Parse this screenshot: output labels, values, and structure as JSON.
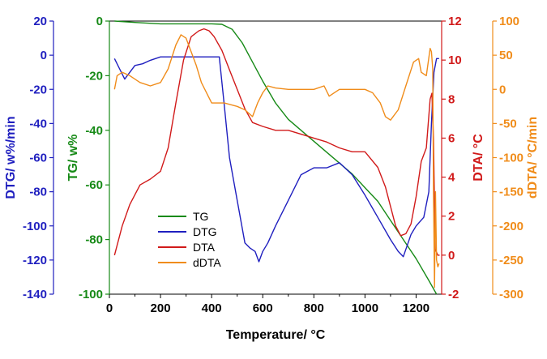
{
  "chart_data": {
    "type": "line",
    "xlabel": "Temperature/ °C",
    "xlim": [
      0,
      1300
    ],
    "xticks": [
      0,
      200,
      400,
      600,
      800,
      1000,
      1200
    ],
    "axes": {
      "DTG": {
        "label": "DTG/ w%/min",
        "color": "#1f1fbf",
        "lim": [
          -140,
          20
        ],
        "ticks": [
          -140,
          -120,
          -100,
          -80,
          -60,
          -40,
          -20,
          0,
          20
        ]
      },
      "TG": {
        "label": "TG/ w%",
        "color": "#178a17",
        "lim": [
          -100,
          0
        ],
        "ticks": [
          -100,
          -80,
          -60,
          -40,
          -20,
          0
        ]
      },
      "DTA": {
        "label": "DTA/ °C",
        "color": "#d11a1a",
        "lim": [
          -2,
          12
        ],
        "ticks": [
          -2,
          0,
          2,
          4,
          6,
          8,
          10,
          12
        ]
      },
      "dDTA": {
        "label": "dDTA/ °C/min",
        "color": "#f08c1a",
        "lim": [
          -300,
          100
        ],
        "ticks": [
          -300,
          -250,
          -200,
          -150,
          -100,
          -50,
          0,
          50,
          100
        ]
      }
    },
    "legend": {
      "position": "lower-left",
      "entries": [
        "TG",
        "DTG",
        "DTA",
        "dDTA"
      ]
    },
    "series": [
      {
        "name": "TG",
        "axis": "TG",
        "color": "#178a17",
        "x": [
          20,
          100,
          200,
          300,
          400,
          440,
          480,
          520,
          560,
          600,
          650,
          700,
          750,
          800,
          850,
          900,
          950,
          1000,
          1050,
          1100,
          1150,
          1200,
          1250,
          1280
        ],
        "y": [
          0,
          -0.5,
          -1,
          -1,
          -1,
          -1.2,
          -3,
          -8,
          -15,
          -22,
          -30,
          -36,
          -40,
          -44,
          -48,
          -52,
          -56,
          -61,
          -66,
          -73,
          -80,
          -87,
          -95,
          -100
        ]
      },
      {
        "name": "DTG",
        "axis": "DTG",
        "color": "#1f1fbf",
        "x": [
          20,
          40,
          60,
          80,
          100,
          130,
          160,
          200,
          250,
          300,
          350,
          400,
          430,
          450,
          470,
          500,
          530,
          550,
          570,
          585,
          600,
          620,
          650,
          700,
          750,
          800,
          850,
          900,
          950,
          1000,
          1050,
          1100,
          1130,
          1150,
          1180,
          1200,
          1230,
          1250,
          1260,
          1270,
          1280,
          1290
        ],
        "y": [
          -2,
          -8,
          -14,
          -10,
          -6,
          -5,
          -3,
          -1,
          -1,
          -1,
          -1,
          -1,
          -1,
          -30,
          -60,
          -85,
          -110,
          -113,
          -115,
          -121,
          -115,
          -110,
          -100,
          -85,
          -70,
          -66,
          -66,
          -63,
          -70,
          -82,
          -95,
          -108,
          -115,
          -118,
          -105,
          -100,
          -95,
          -80,
          -40,
          -10,
          -2,
          -2
        ]
      },
      {
        "name": "DTA",
        "axis": "DTA",
        "color": "#d11a1a",
        "x": [
          20,
          50,
          80,
          120,
          160,
          200,
          230,
          260,
          290,
          320,
          350,
          370,
          390,
          410,
          440,
          470,
          500,
          530,
          560,
          600,
          650,
          700,
          750,
          800,
          850,
          900,
          950,
          1000,
          1050,
          1080,
          1100,
          1120,
          1140,
          1160,
          1180,
          1200,
          1220,
          1240,
          1255,
          1262,
          1268,
          1275,
          1285,
          1292
        ],
        "y": [
          0,
          1.5,
          2.6,
          3.6,
          3.9,
          4.3,
          5.5,
          7.8,
          10,
          11.2,
          11.5,
          11.6,
          11.5,
          11.2,
          10.5,
          9.5,
          8.5,
          7.5,
          6.8,
          6.6,
          6.4,
          6.4,
          6.2,
          6,
          5.8,
          5.5,
          5.3,
          5.3,
          4.5,
          3.5,
          2.5,
          1.5,
          1,
          1.1,
          1.6,
          3,
          4.8,
          5.5,
          8,
          8.3,
          6,
          0.3,
          0,
          0
        ]
      },
      {
        "name": "dDTA",
        "axis": "dDTA",
        "color": "#f08c1a",
        "x": [
          20,
          30,
          50,
          80,
          120,
          160,
          200,
          230,
          260,
          280,
          300,
          320,
          340,
          360,
          400,
          450,
          500,
          530,
          560,
          580,
          600,
          620,
          650,
          700,
          750,
          800,
          840,
          860,
          900,
          950,
          1000,
          1030,
          1060,
          1080,
          1100,
          1130,
          1160,
          1190,
          1210,
          1220,
          1240,
          1255,
          1260,
          1265,
          1268,
          1272,
          1276,
          1280,
          1285,
          1290
        ],
        "y": [
          0,
          20,
          25,
          20,
          10,
          5,
          10,
          30,
          65,
          80,
          75,
          55,
          35,
          10,
          -20,
          -20,
          -25,
          -30,
          -40,
          -20,
          -5,
          5,
          2,
          0,
          0,
          0,
          5,
          -10,
          0,
          0,
          0,
          -5,
          -20,
          -40,
          -45,
          -30,
          5,
          40,
          45,
          25,
          20,
          60,
          55,
          30,
          -150,
          -290,
          -150,
          -250,
          -260,
          -255
        ]
      }
    ]
  }
}
